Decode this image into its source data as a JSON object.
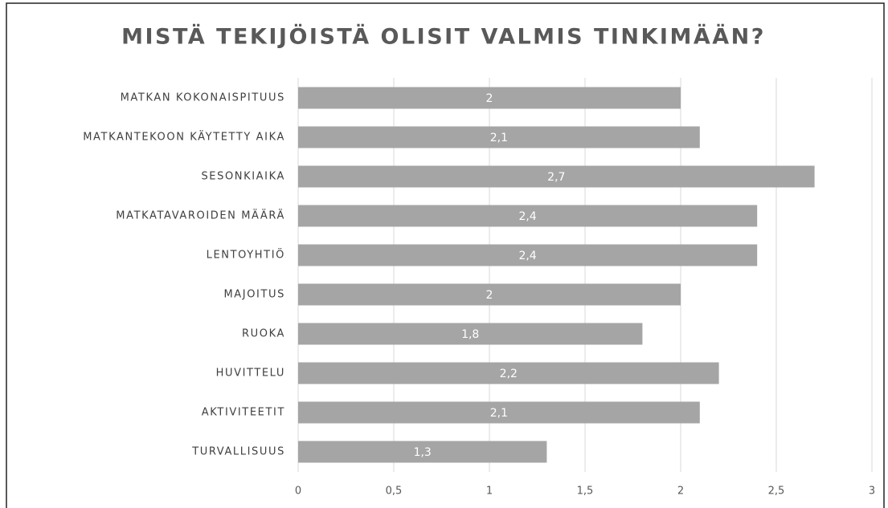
{
  "chart_data": {
    "type": "barh",
    "title": "MISTÄ TEKIJÖISTÄ OLISIT VALMIS TINKIMÄÄN?",
    "categories": [
      "MATKAN KOKONAISPITUUS",
      "MATKANTEKOON KÄYTETTY AIKA",
      "SESONKIAIKA",
      "MATKATAVAROIDEN MÄÄRÄ",
      "LENTOYHTIÖ",
      "MAJOITUS",
      "RUOKA",
      "HUVITTELU",
      "AKTIVITEETIT",
      "TURVALLISUUS"
    ],
    "values": [
      2,
      2.1,
      2.7,
      2.4,
      2.4,
      2,
      1.8,
      2.2,
      2.1,
      1.3
    ],
    "value_labels": [
      "2",
      "2,1",
      "2,7",
      "2,4",
      "2,4",
      "2",
      "1,8",
      "2,2",
      "2,1",
      "1,3"
    ],
    "color": "#a5a5a5",
    "xlim": [
      0,
      3
    ],
    "xticks": [
      0,
      {
        "value": 0.5,
        "label": "0,5"
      },
      1,
      {
        "value": 1.5,
        "label": "1,5"
      },
      2,
      {
        "value": 2.5,
        "label": "2,5"
      },
      3
    ],
    "grid": true
  }
}
